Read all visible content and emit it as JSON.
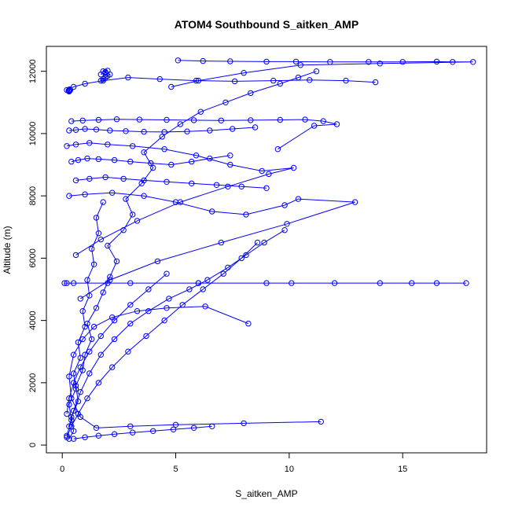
{
  "chart_data": {
    "type": "line",
    "title": "ATOM4 Southbound S_aitken_AMP",
    "xlabel": "S_aitken_AMP",
    "ylabel": "Altitude (m)",
    "xlim": [
      -0.7,
      18.7
    ],
    "ylim": [
      -250,
      12800
    ],
    "x_ticks": [
      0,
      5,
      10,
      15
    ],
    "y_ticks": [
      0,
      2000,
      4000,
      6000,
      8000,
      10000,
      12000
    ],
    "grid": false,
    "legend": "none",
    "marker": "open-circle",
    "color": "#0000ff",
    "series": [
      {
        "x": [
          0.3,
          0.5,
          0.4,
          0.7,
          0.6,
          0.9,
          1.0,
          1.3,
          1.1,
          1.5,
          1.8,
          2.1,
          2.4,
          2.0,
          2.7,
          3.1,
          2.8,
          3.5,
          4.0,
          3.6,
          4.4,
          5.2,
          6.1,
          7.2,
          8.3,
          9.6,
          10.4,
          11.2
        ],
        "y": [
          200,
          450,
          900,
          1400,
          1900,
          2400,
          2900,
          3400,
          3900,
          4400,
          4900,
          5400,
          5900,
          6400,
          6900,
          7400,
          7900,
          8400,
          8900,
          9400,
          9900,
          10300,
          10700,
          11000,
          11300,
          11600,
          11800,
          12000
        ]
      },
      {
        "x": [
          11.4,
          8.0,
          5.0,
          3.0,
          1.5,
          0.8,
          0.4,
          0.3,
          0.5,
          0.9,
          1.4,
          2.2,
          3.3,
          4.6,
          6.3,
          8.2
        ],
        "y": [
          750,
          700,
          650,
          600,
          550,
          900,
          1500,
          2200,
          2900,
          3400,
          3800,
          4100,
          4300,
          4400,
          4450,
          3900
        ]
      },
      {
        "x": [
          0.1,
          3.0,
          6.0,
          9.0,
          12.0,
          15.4,
          16.5,
          17.8,
          14.0,
          10.1,
          6.0,
          2.0,
          0.5,
          0.2
        ],
        "y": [
          5200,
          5200,
          5200,
          5200,
          5200,
          5200,
          5200,
          5200,
          5200,
          5200,
          5200,
          5200,
          5200,
          5200
        ]
      },
      {
        "x": [
          5.1,
          6.2,
          7.4,
          9.0,
          10.3,
          11.8,
          13.5,
          15.0,
          16.5,
          17.2,
          18.1,
          14.0,
          10.5,
          8.0,
          6.0,
          4.8
        ],
        "y": [
          12350,
          12330,
          12320,
          12310,
          12310,
          12300,
          12300,
          12300,
          12310,
          12300,
          12300,
          12250,
          12200,
          11950,
          11700,
          11500
        ]
      },
      {
        "x": [
          0.3,
          1.0,
          2.2,
          3.6,
          5.0,
          6.6,
          8.1,
          9.8,
          10.4,
          12.9,
          9.9,
          7.0,
          4.2,
          2.1,
          0.8
        ],
        "y": [
          8000,
          8050,
          8100,
          8000,
          7800,
          7500,
          7400,
          7700,
          7900,
          7800,
          7100,
          6500,
          5900,
          5300,
          4700
        ]
      },
      {
        "x": [
          0.2,
          0.6,
          1.2,
          2.0,
          3.1,
          4.5,
          5.9,
          7.4,
          8.8,
          10.2,
          9.1,
          7.3,
          5.2,
          3.3,
          1.7,
          0.6
        ],
        "y": [
          9600,
          9650,
          9700,
          9650,
          9600,
          9500,
          9300,
          9000,
          8800,
          8900,
          8700,
          8300,
          7800,
          7200,
          6600,
          6100
        ]
      },
      {
        "x": [
          0.4,
          0.9,
          1.6,
          2.4,
          3.4,
          4.6,
          5.8,
          7.0,
          8.3,
          9.6,
          10.7,
          11.5,
          12.1,
          11.1,
          9.5
        ],
        "y": [
          10400,
          10420,
          10440,
          10460,
          10450,
          10440,
          10430,
          10420,
          10430,
          10440,
          10450,
          10400,
          10300,
          10250,
          9500
        ]
      },
      {
        "x": [
          0.3,
          0.5,
          0.8,
          1.2,
          1.7,
          2.3,
          3.0,
          3.8,
          4.7,
          5.6,
          6.4,
          7.3,
          8.1,
          8.9,
          9.8
        ],
        "y": [
          600,
          1100,
          1700,
          2300,
          2900,
          3400,
          3900,
          4300,
          4700,
          5000,
          5300,
          5700,
          6100,
          6500,
          6900
        ]
      },
      {
        "x": [
          0.2,
          0.4,
          0.3,
          0.6,
          0.5,
          0.8,
          0.7,
          1.0,
          0.9,
          1.2,
          1.1,
          1.4,
          1.3,
          1.6,
          1.5,
          1.8
        ],
        "y": [
          300,
          800,
          1300,
          1800,
          2300,
          2800,
          3300,
          3800,
          4300,
          4800,
          5300,
          5800,
          6300,
          6800,
          7300,
          7800
        ]
      },
      {
        "x": [
          1.7,
          1.9,
          1.8,
          2.0,
          1.9,
          2.1,
          2.0,
          1.9,
          1.8,
          1.7
        ],
        "y": [
          11900,
          11950,
          12000,
          12020,
          11980,
          11900,
          11850,
          11800,
          11750,
          11700
        ]
      },
      {
        "x": [
          0.3,
          0.35,
          0.28,
          0.32,
          0.3,
          0.34
        ],
        "y": [
          11350,
          11400,
          11380,
          11420,
          11360,
          11390
        ]
      },
      {
        "x": [
          0.2,
          0.5,
          1.0,
          1.8,
          2.9,
          4.3,
          5.9,
          7.6,
          9.3,
          10.9,
          12.5,
          13.8
        ],
        "y": [
          11400,
          11500,
          11600,
          11700,
          11800,
          11750,
          11700,
          11680,
          11700,
          11720,
          11700,
          11650
        ]
      },
      {
        "x": [
          0.4,
          0.7,
          1.1,
          1.6,
          2.3,
          3.0,
          3.9,
          4.8,
          5.7,
          6.5,
          7.4
        ],
        "y": [
          9100,
          9150,
          9200,
          9180,
          9150,
          9100,
          9050,
          9000,
          9100,
          9200,
          9300
        ]
      },
      {
        "x": [
          0.2,
          0.4,
          0.7,
          1.1,
          1.6,
          2.2,
          2.9,
          3.7,
          4.5,
          5.3,
          6.2,
          7.1,
          7.9,
          8.6
        ],
        "y": [
          250,
          600,
          1000,
          1500,
          2000,
          2500,
          3000,
          3500,
          4000,
          4500,
          5000,
          5500,
          6000,
          6500
        ]
      },
      {
        "x": [
          0.5,
          1.0,
          1.6,
          2.3,
          3.1,
          4.0,
          4.9,
          5.8,
          6.6
        ],
        "y": [
          200,
          250,
          300,
          350,
          400,
          450,
          500,
          550,
          600
        ]
      },
      {
        "x": [
          0.2,
          0.3,
          0.5,
          0.8,
          1.2,
          1.7,
          2.3,
          3.0,
          3.8,
          4.6
        ],
        "y": [
          1000,
          1500,
          2000,
          2500,
          3000,
          3500,
          4000,
          4500,
          5000,
          5500
        ]
      },
      {
        "x": [
          0.3,
          0.6,
          1.0,
          1.5,
          2.1,
          2.8,
          3.6,
          4.5,
          5.5,
          6.5,
          7.5,
          8.5
        ],
        "y": [
          10100,
          10120,
          10150,
          10130,
          10100,
          10080,
          10060,
          10050,
          10070,
          10100,
          10150,
          10200
        ]
      },
      {
        "x": [
          0.6,
          1.2,
          1.9,
          2.7,
          3.6,
          4.6,
          5.7,
          6.8,
          7.9,
          9.0
        ],
        "y": [
          8500,
          8550,
          8600,
          8550,
          8500,
          8450,
          8400,
          8350,
          8300,
          8250
        ]
      }
    ]
  }
}
